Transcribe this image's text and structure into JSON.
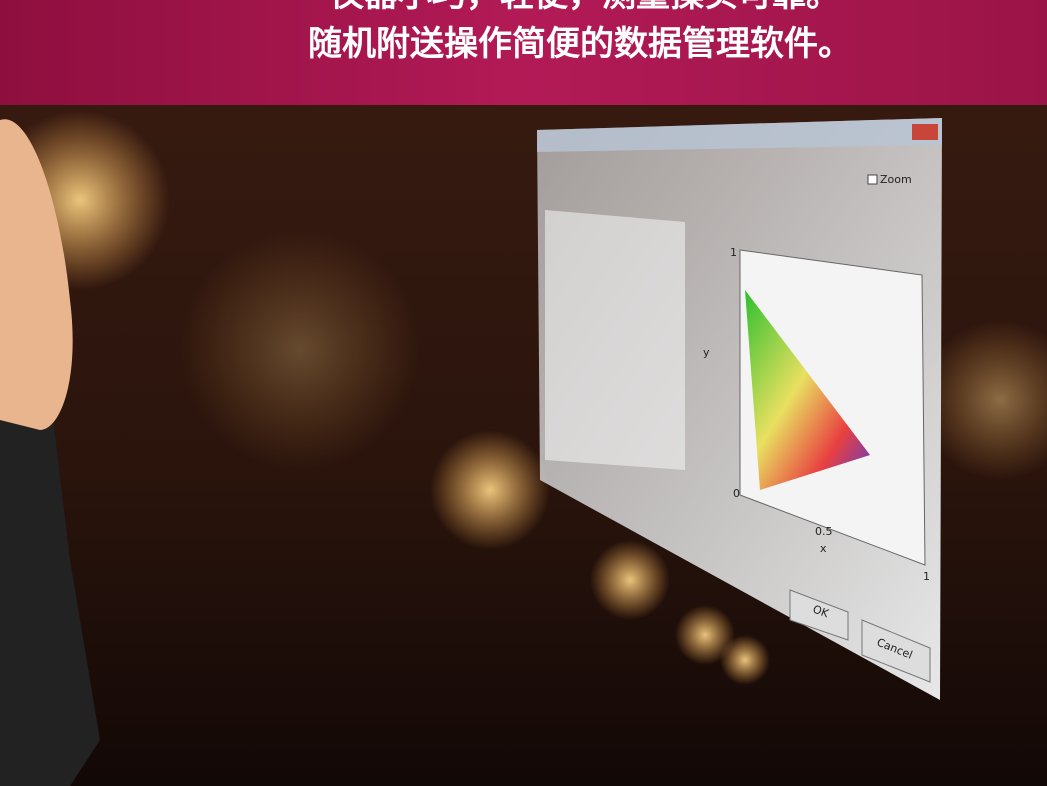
{
  "banner": {
    "lines": [
      "仪器小巧，轻便，测量操实可靠。",
      "随机附送操作简便的数据管理软件。"
    ]
  },
  "window": {
    "zoom": "Zoom",
    "ok": "OK",
    "cancel": "Cancel",
    "axis": {
      "x": "x",
      "y": "y",
      "zero": "0",
      "half": "0.5",
      "one": "1"
    }
  }
}
